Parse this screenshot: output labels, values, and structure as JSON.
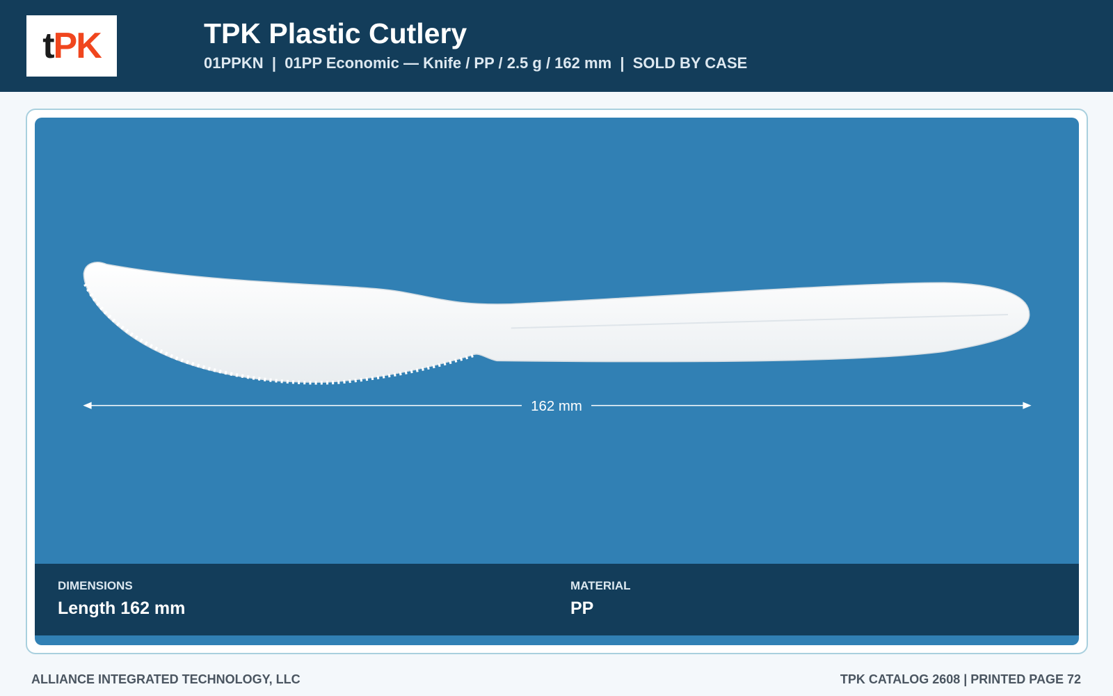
{
  "header": {
    "logo": [
      "t",
      "PK"
    ],
    "title": "TPK Plastic Cutlery",
    "subtitle": "01PPKN  |  01PP Economic — Knife / PP / 2.5 g / 162 mm  |  SOLD BY CASE"
  },
  "image": {
    "dimension_label": "162 mm"
  },
  "specs": [
    {
      "label": "DIMENSIONS",
      "value": "Length 162 mm"
    },
    {
      "label": "MATERIAL",
      "value": "PP"
    }
  ],
  "footer": {
    "left": "ALLIANCE INTEGRATED TECHNOLOGY, LLC",
    "right": "TPK CATALOG 2608 | PRINTED PAGE 72"
  }
}
